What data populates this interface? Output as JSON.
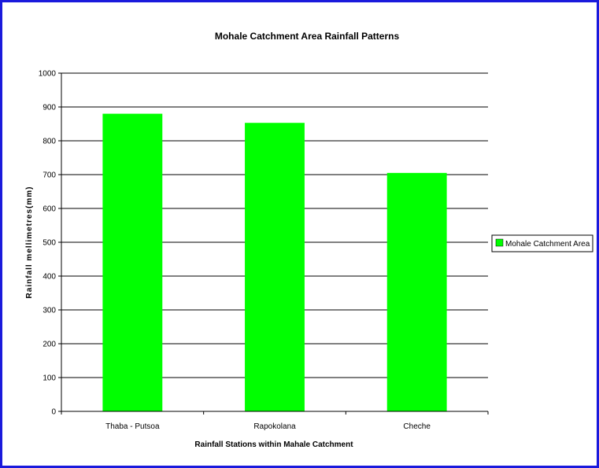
{
  "chart_data": {
    "type": "bar",
    "title": "Mohale Catchment Area Rainfall Patterns",
    "xlabel": "Rainfall Stations within Mahale Catchment",
    "ylabel": "Rainfall mellimetres(mm)",
    "categories": [
      "Thaba - Putsoa",
      "Rapokolana",
      "Cheche"
    ],
    "series": [
      {
        "name": "Mohale Catchment Area",
        "values": [
          880,
          853,
          705
        ]
      }
    ],
    "ylim": [
      0,
      1000
    ],
    "yticks": [
      0,
      100,
      200,
      300,
      400,
      500,
      600,
      700,
      800,
      900,
      1000
    ],
    "grid": true,
    "legend": "right",
    "colors": {
      "bar": "#00ff00",
      "frame": "#1a1adc",
      "grid": "#000000"
    }
  }
}
